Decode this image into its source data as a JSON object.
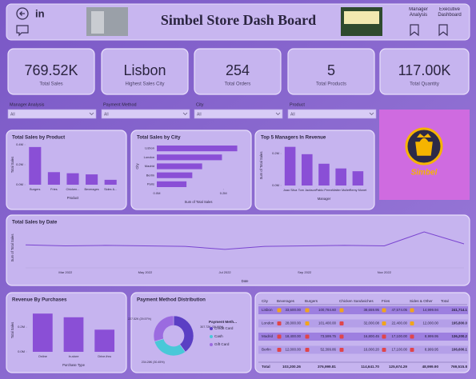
{
  "header": {
    "title": "Simbel Store Dash Board",
    "linkedin": "in",
    "nav": [
      "Manager Analysis",
      "Executive Dashboard"
    ]
  },
  "kpis": [
    {
      "value": "769.52K",
      "label": "Total Sales"
    },
    {
      "value": "Lisbon",
      "label": "Highest Sales City"
    },
    {
      "value": "254",
      "label": "Total Orders"
    },
    {
      "value": "5",
      "label": "Total Products"
    },
    {
      "value": "117.00K",
      "label": "Total Quantity"
    }
  ],
  "slicers": [
    {
      "label": "Manager Analysis",
      "value": "All"
    },
    {
      "label": "Payment Method",
      "value": "All"
    },
    {
      "label": "City",
      "value": "All"
    },
    {
      "label": "Product",
      "value": "All"
    }
  ],
  "logo": {
    "text": "Simbel"
  },
  "chart_data": [
    {
      "type": "bar",
      "title": "Total Sales by Product",
      "x_label": "Product",
      "y_label": "Total Sales",
      "categories": [
        "Burgers",
        "Fries",
        "Chicken...",
        "Beverages",
        "Sides &..."
      ],
      "values": [
        376999.81,
        125674.29,
        114641.7,
        103200.26,
        48999.9
      ],
      "color": "#8a4fd6",
      "ylim": [
        0,
        400000
      ],
      "yticks": [
        {
          "value": 0,
          "label": "0.0M"
        },
        {
          "value": 200000,
          "label": "0.2M"
        },
        {
          "value": 400000,
          "label": "0.4M"
        }
      ]
    },
    {
      "type": "barh",
      "title": "Total Sales by City",
      "x_label": "Sum of Total Sales",
      "y_label": "City",
      "categories": [
        "Lisbon",
        "London",
        "Madrid",
        "Berlin",
        "Paris"
      ],
      "values": [
        241714,
        195800,
        136200,
        106600,
        89200
      ],
      "color": "#8a4fd6",
      "xlim": [
        0,
        250000
      ],
      "xticks": [
        {
          "value": 0,
          "label": "0.0M"
        },
        {
          "value": 200000,
          "label": "0.2M"
        }
      ]
    },
    {
      "type": "bar",
      "title": "Top 5 Managers In Revenue",
      "x_label": "Manager",
      "y_label": "Sum of Total Sales",
      "categories": [
        "Joao Silva",
        "Tom Jackson",
        "Pablo Perez",
        "Walter Muller",
        "Remy Monet"
      ],
      "values": [
        241714,
        195800,
        136200,
        106600,
        89200
      ],
      "color": "#8a4fd6",
      "ylim": [
        0,
        250000
      ],
      "yticks": [
        {
          "value": 0,
          "label": "0.0M"
        },
        {
          "value": 200000,
          "label": "0.2M"
        }
      ]
    },
    {
      "type": "line",
      "title": "Total Sales by Date",
      "x_label": "Date",
      "y_label": "Sum of Total Sales",
      "categories": [
        null,
        "Mar 2022",
        null,
        "May 2022",
        null,
        "Jul 2022",
        null,
        "Sep 2022",
        null,
        "Nov 2022",
        null,
        null
      ],
      "values": [
        2300,
        2200,
        2250,
        2200,
        2150,
        1850,
        2150,
        2200,
        2250,
        2200,
        3600,
        2400
      ],
      "color": "#7a45d0",
      "ylim": [
        0,
        4000
      ]
    },
    {
      "type": "bar",
      "title": "Revenue By Purchases",
      "x_label": "Purchase Type",
      "y_label": "Total Sales",
      "categories": [
        "Online",
        "In-store",
        "Drive-thru"
      ],
      "values": [
        310000,
        280000,
        179516
      ],
      "color": "#8a4fd6",
      "ylim": [
        0,
        350000
      ],
      "yticks": [
        {
          "value": 0,
          "label": "0.0M"
        },
        {
          "value": 200000,
          "label": "0.2M"
        }
      ]
    },
    {
      "type": "pie",
      "title": "Payment Method Distribution",
      "legend_title": "Payment Meth...",
      "donut": true,
      "categories": [
        "Credit Card",
        "Cash",
        "Gift Card"
      ],
      "values": [
        307720,
        234280,
        227520
      ],
      "value_labels": [
        "307.72K (39.99%)",
        "234.28K (30.45%)",
        "227.52K (29.57%)"
      ],
      "colors": [
        "#5b3fc4",
        "#49c8d8",
        "#9b6be0"
      ]
    }
  ],
  "table": {
    "header": [
      "City",
      "Beverages",
      "Burgers",
      "Chicken Sandwiches",
      "Fries",
      "Sides & Other",
      "Total"
    ],
    "rows": [
      [
        "Lisbon",
        "33,600.00",
        "100,784.60",
        "38,659.95",
        "47,574.05",
        "14,999.94",
        "241,714.1"
      ],
      [
        "London",
        "28,000.00",
        "101,400.00",
        "32,000.08",
        "22,400.00",
        "12,000.00",
        "195,800.0"
      ],
      [
        "Madrid",
        "18,400.00",
        "73,599.75",
        "16,800.45",
        "17,100.00",
        "8,999.95",
        "136,200.2"
      ],
      [
        "Berlin",
        "12,000.00",
        "52,399.86",
        "16,000.20",
        "17,100.00",
        "8,999.95",
        "106,600.1"
      ]
    ],
    "total": [
      "Total",
      "103,200.26",
      "376,999.81",
      "114,641.70",
      "125,674.29",
      "48,999.90",
      "769,515.8"
    ]
  }
}
